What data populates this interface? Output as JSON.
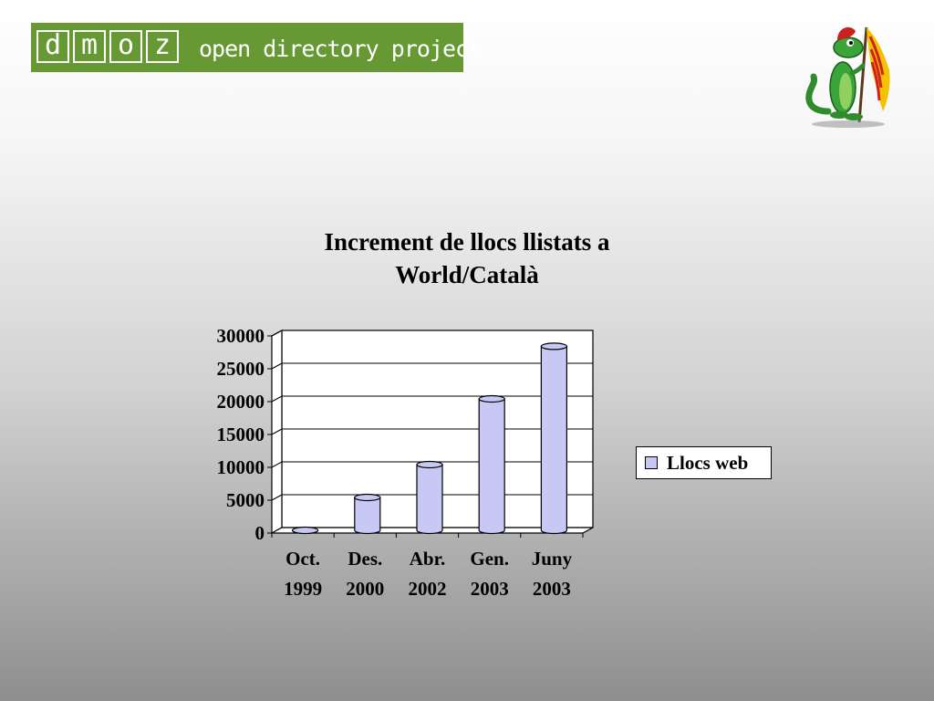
{
  "logo": {
    "letters": [
      "d",
      "m",
      "o",
      "z"
    ],
    "tagline": "open directory project",
    "color": "#669933"
  },
  "mascot": {
    "icon": "dmoz-lizard-with-catalan-flag-icon"
  },
  "chart_data": {
    "type": "bar",
    "title": "Increment de llocs llistats a World/Català",
    "categories": [
      "Oct. 1999",
      "Des. 2000",
      "Abr. 2002",
      "Gen. 2003",
      "Juny 2003"
    ],
    "category_lines": [
      [
        "Oct.",
        "1999"
      ],
      [
        "Des.",
        "2000"
      ],
      [
        "Abr.",
        "2002"
      ],
      [
        "Gen.",
        "2003"
      ],
      [
        "Juny",
        "2003"
      ]
    ],
    "series": [
      {
        "name": "Llocs web",
        "values": [
          0,
          5000,
          10000,
          20000,
          28000
        ],
        "color": "#c8c8f4"
      }
    ],
    "yticks": [
      0,
      5000,
      10000,
      15000,
      20000,
      25000,
      30000
    ],
    "ylim": [
      0,
      30000
    ],
    "grid": true,
    "legend": "right"
  }
}
